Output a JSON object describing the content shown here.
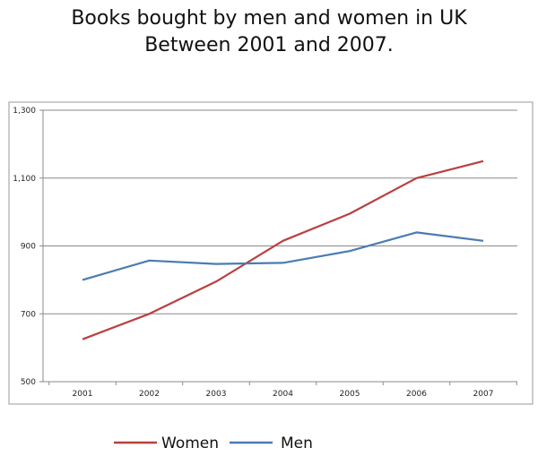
{
  "chart_data": {
    "type": "line",
    "title": "Books bought by men and women in UK",
    "subtitle": "Between 2001 and 2007.",
    "xlabel": "",
    "ylabel": "",
    "categories": [
      "2001",
      "2002",
      "2003",
      "2004",
      "2005",
      "2006",
      "2007"
    ],
    "ylim": [
      500,
      1300
    ],
    "yticks": [
      500,
      700,
      900,
      1100,
      1300
    ],
    "ytick_labels": [
      "500",
      "700",
      "900",
      "1,100",
      "1,300"
    ],
    "grid": true,
    "legend_position": "bottom",
    "series": [
      {
        "name": "Women",
        "color": "#b9403f",
        "values": [
          625,
          700,
          795,
          915,
          995,
          1100,
          1150
        ]
      },
      {
        "name": "Men",
        "color": "#4a7cb1",
        "values": [
          800,
          857,
          847,
          850,
          885,
          940,
          915
        ]
      }
    ]
  }
}
